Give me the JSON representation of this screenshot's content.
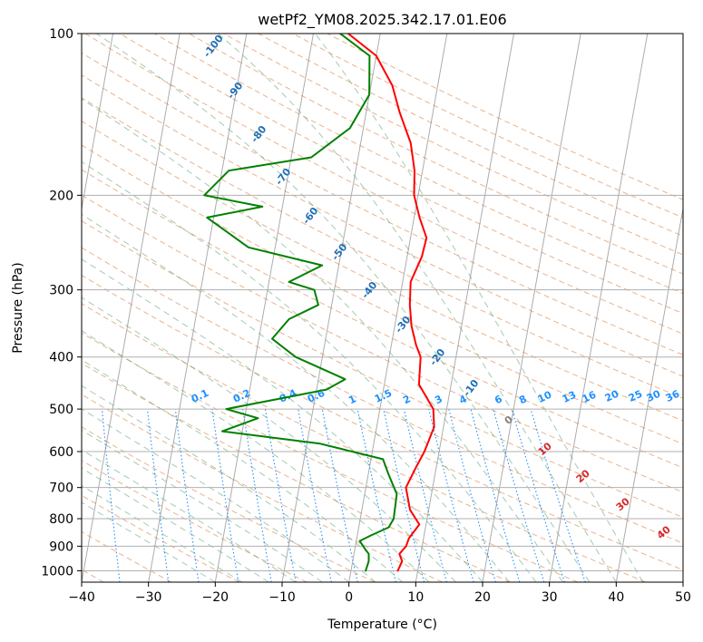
{
  "chart_data": {
    "type": "line",
    "subtype": "skew-t log-p diagram",
    "title": "wetPf2_YM08.2025.342.17.01.E06",
    "xlabel": "Temperature (°C)",
    "ylabel": "Pressure (hPa)",
    "xlim": [
      -40,
      50
    ],
    "ylim": [
      1050,
      100
    ],
    "y_scale": "log",
    "grid": true,
    "x_ticks": [
      -40,
      -30,
      -20,
      -10,
      0,
      10,
      20,
      30,
      40,
      50
    ],
    "x_tick_labels": [
      "−40",
      "−30",
      "−20",
      "−10",
      "0",
      "10",
      "20",
      "30",
      "40",
      "50"
    ],
    "y_ticks": [
      100,
      200,
      300,
      400,
      500,
      600,
      700,
      800,
      900,
      1000
    ],
    "y_tick_labels": [
      "100",
      "200",
      "300",
      "400",
      "500",
      "600",
      "700",
      "800",
      "900",
      "1000"
    ],
    "series": [
      {
        "color": "#ff0000",
        "x": [
          7.0,
          7.4,
          6.8,
          7.6,
          7.8,
          9.0,
          7.2,
          6.0,
          7.0,
          7.8,
          8.6,
          8.0,
          5.2,
          4.7,
          3.7,
          2.5,
          1.7,
          1.2,
          2.2,
          2.4,
          0.8,
          -0.6,
          -1.2,
          -2.5,
          -5.0,
          -6.8,
          -10.0,
          -14.8
        ],
        "y": [
          1000,
          960,
          930,
          900,
          870,
          820,
          770,
          700,
          640,
          600,
          540,
          500,
          450,
          400,
          380,
          350,
          320,
          290,
          260,
          240,
          220,
          200,
          180,
          160,
          140,
          125,
          110,
          100
        ]
      },
      {
        "color": "#008000",
        "x": [
          2.2,
          2.4,
          2.2,
          1.5,
          0.5,
          2.0,
          4.5,
          5.0,
          4.8,
          3.0,
          1.8,
          -8.0,
          -23.0,
          -18.0,
          -23.0,
          -8.5,
          -6.0,
          -14.0,
          -18.0,
          -16.0,
          -12.0,
          -13.0,
          -17.0,
          -12.5,
          -24.0,
          -31.0,
          -23.0,
          -32.0,
          -29.0,
          -17.0,
          -12.0,
          -10.0,
          -11.0,
          -16.0
        ],
        "y": [
          1000,
          960,
          930,
          910,
          880,
          860,
          830,
          800,
          720,
          660,
          620,
          580,
          550,
          520,
          500,
          460,
          440,
          400,
          370,
          340,
          320,
          300,
          290,
          270,
          250,
          220,
          210,
          200,
          180,
          170,
          150,
          130,
          110,
          100
        ]
      }
    ],
    "annotations": {
      "dry_adiabats": [
        "-100",
        "-90",
        "-80",
        "-70",
        "-60",
        "-50",
        "-40",
        "-30",
        "-20",
        "-10"
      ],
      "mixing_ratios": [
        "0.1",
        "0.2",
        "0.4",
        "0.6",
        "1",
        "1.5",
        "2",
        "3",
        "4",
        "6",
        "8",
        "10",
        "13",
        "16",
        "20",
        "25",
        "30",
        "36"
      ],
      "moist_adiabats": [
        "0",
        "10",
        "20",
        "30",
        "40"
      ]
    },
    "colors": {
      "temperature": "#ff0000",
      "dewpoint": "#008000",
      "dry_adiabat": "#d2691e",
      "moist_adiabat": "#2e8b57",
      "mixing_ratio": "#1e90ff",
      "isotherm": "#7f7f7f",
      "dry_label": "#1f6fb5",
      "mixing_label": "#1e90ff",
      "moist_label": "#d62728"
    }
  }
}
